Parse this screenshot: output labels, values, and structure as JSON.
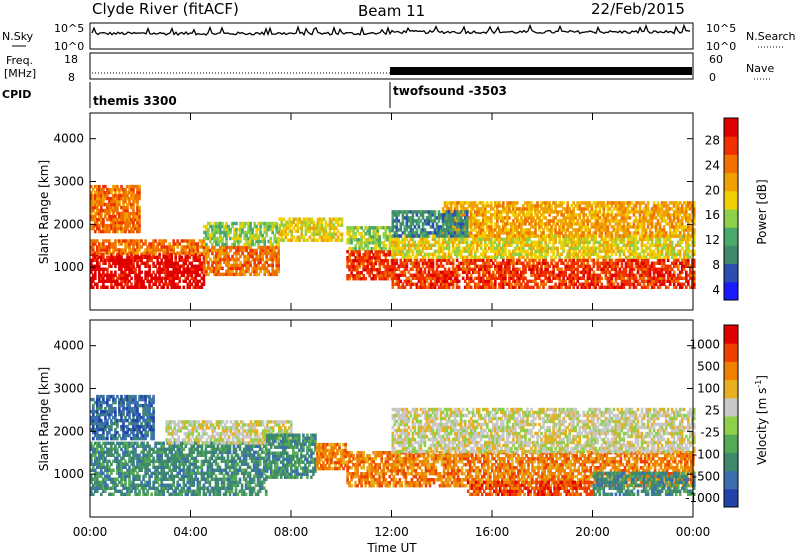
{
  "header": {
    "station": "Clyde River (fitACF)",
    "beam": "Beam 11",
    "date": "22/Feb/2015"
  },
  "strips": {
    "nsky_label": "N.Sky",
    "nsky_ticks": [
      "10^5",
      "10^0"
    ],
    "nsearch_label": "N.Search",
    "nsearch_ticks": [
      "10^5",
      "10^0"
    ],
    "freq_label_1": "Freq.",
    "freq_label_2": "[MHz]",
    "freq_ticks": [
      "18",
      "8"
    ],
    "nave_label": "Nave",
    "nave_ticks": [
      "60",
      "0"
    ],
    "cpid_label": "CPID",
    "cpid_modes": [
      {
        "name": "themis 3300",
        "start_hour": 0
      },
      {
        "name": "twofsound -3503",
        "start_hour": 12
      }
    ]
  },
  "colors": {
    "power": [
      "#1a1aff",
      "#2a4fb0",
      "#3f8a6a",
      "#4aa86a",
      "#8fd04a",
      "#f0d000",
      "#f0a000",
      "#f07000",
      "#f03000",
      "#e00000"
    ],
    "velocity": [
      "#2244aa",
      "#3b6fb0",
      "#3f8a6a",
      "#55aa55",
      "#8fd04a",
      "#c8c8c8",
      "#e8b020",
      "#f08000",
      "#f04000",
      "#e00000"
    ]
  },
  "chart_data": [
    {
      "type": "heatmap",
      "name": "power",
      "title": "",
      "xlabel": "Time UT",
      "ylabel": "Slant Range [km]",
      "xlim": [
        0,
        24
      ],
      "ylim": [
        0,
        4600
      ],
      "x_ticks": [
        "00:00",
        "04:00",
        "08:00",
        "12:00",
        "16:00",
        "20:00",
        "00:00"
      ],
      "y_ticks": [
        1000,
        2000,
        3000,
        4000
      ],
      "colorbar_label": "Power [dB]",
      "colorbar_ticks": [
        "28",
        "24",
        "20",
        "16",
        "12",
        "8",
        "4"
      ],
      "colorbar_range": [
        0,
        30
      ],
      "regions": [
        {
          "x": [
            0.0,
            4.5
          ],
          "y": [
            500,
            1300
          ],
          "level": 9
        },
        {
          "x": [
            0.0,
            4.5
          ],
          "y": [
            1300,
            1600
          ],
          "level": 7
        },
        {
          "x": [
            0.0,
            2.0
          ],
          "y": [
            1800,
            2900
          ],
          "level": 7
        },
        {
          "x": [
            4.5,
            7.5
          ],
          "y": [
            800,
            1500
          ],
          "level": 7
        },
        {
          "x": [
            4.5,
            7.5
          ],
          "y": [
            1500,
            2000
          ],
          "level": 4
        },
        {
          "x": [
            7.5,
            10.0
          ],
          "y": [
            1600,
            2100
          ],
          "level": 5
        },
        {
          "x": [
            10.2,
            12.0
          ],
          "y": [
            700,
            1400
          ],
          "level": 8
        },
        {
          "x": [
            10.2,
            12.0
          ],
          "y": [
            1400,
            1900
          ],
          "level": 4
        },
        {
          "x": [
            12.0,
            24.0
          ],
          "y": [
            500,
            1200
          ],
          "level": 8
        },
        {
          "x": [
            12.0,
            24.0
          ],
          "y": [
            1200,
            1700
          ],
          "level": 5
        },
        {
          "x": [
            14.0,
            24.0
          ],
          "y": [
            1700,
            2500
          ],
          "level": 6
        },
        {
          "x": [
            12.0,
            15.0
          ],
          "y": [
            1700,
            2300
          ],
          "level": 2
        }
      ]
    },
    {
      "type": "heatmap",
      "name": "velocity",
      "title": "",
      "xlabel": "Time UT",
      "ylabel": "Slant Range [km]",
      "xlim": [
        0,
        24
      ],
      "ylim": [
        0,
        4600
      ],
      "x_ticks": [
        "00:00",
        "04:00",
        "08:00",
        "12:00",
        "16:00",
        "20:00",
        "00:00"
      ],
      "y_ticks": [
        1000,
        2000,
        3000,
        4000
      ],
      "colorbar_label": "Velocity [m s",
      "colorbar_label_sup": "-1",
      "colorbar_label_end": "]",
      "colorbar_ticks": [
        "1000",
        "500",
        "100",
        "25",
        "-25",
        "-100",
        "-500",
        "-1000"
      ],
      "regions": [
        {
          "x": [
            0.0,
            7.0
          ],
          "y": [
            500,
            1700
          ],
          "level": 2
        },
        {
          "x": [
            0.0,
            2.5
          ],
          "y": [
            1800,
            2800
          ],
          "level": 1
        },
        {
          "x": [
            3.0,
            8.0
          ],
          "y": [
            1700,
            2200
          ],
          "level": 5
        },
        {
          "x": [
            7.0,
            9.0
          ],
          "y": [
            900,
            1900
          ],
          "level": 2
        },
        {
          "x": [
            9.0,
            10.2
          ],
          "y": [
            1100,
            1700
          ],
          "level": 7
        },
        {
          "x": [
            10.2,
            24.0
          ],
          "y": [
            700,
            1500
          ],
          "level": 7
        },
        {
          "x": [
            12.0,
            24.0
          ],
          "y": [
            1500,
            2500
          ],
          "level": 5
        },
        {
          "x": [
            20.0,
            24.0
          ],
          "y": [
            500,
            1000
          ],
          "level": 2
        },
        {
          "x": [
            15.0,
            20.0
          ],
          "y": [
            500,
            800
          ],
          "level": 8
        }
      ]
    }
  ],
  "footer": {
    "xlabel": "Time UT"
  }
}
